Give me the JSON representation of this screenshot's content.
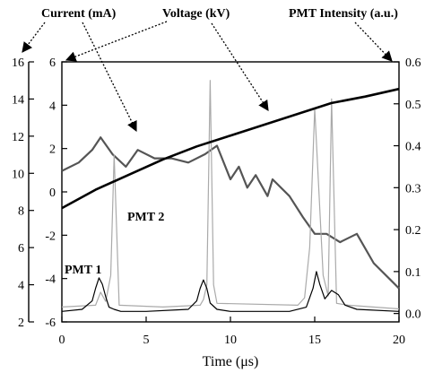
{
  "chart_data": {
    "type": "line",
    "xlabel": "Time (μs)",
    "xlim": [
      0,
      20
    ],
    "xticks": [
      0,
      5,
      10,
      15,
      20
    ],
    "axes": {
      "current": {
        "label": "Current (mA)",
        "ylim": [
          2,
          16
        ],
        "ticks": [
          2,
          4,
          6,
          8,
          10,
          12,
          14,
          16
        ]
      },
      "voltage": {
        "label": "Voltage (kV)",
        "ylim": [
          -6,
          6
        ],
        "ticks": [
          -6,
          -4,
          -2,
          0,
          2,
          4,
          6
        ]
      },
      "pmt": {
        "label": "PMT Intensity (a.u.)",
        "ylim": [
          -0.02,
          0.6
        ],
        "ticks": [
          "0.0",
          "0.1",
          "0.2",
          "0.3",
          "0.4",
          "0.5",
          "0.6"
        ]
      }
    },
    "series": [
      {
        "name": "PMT 2",
        "axis": "pmt",
        "color": "#555555",
        "x": [
          0,
          1,
          1.8,
          2.3,
          3,
          3.8,
          4.5,
          5.5,
          6.5,
          7.5,
          8.5,
          9.2,
          10,
          10.5,
          11,
          11.5,
          12.2,
          12.5,
          13.5,
          14.3,
          15,
          15.7,
          16.5,
          17.5,
          18.5,
          19.5,
          20
        ],
        "values": [
          0.34,
          0.36,
          0.39,
          0.42,
          0.38,
          0.35,
          0.39,
          0.37,
          0.37,
          0.36,
          0.38,
          0.4,
          0.32,
          0.35,
          0.3,
          0.33,
          0.28,
          0.32,
          0.28,
          0.23,
          0.19,
          0.19,
          0.17,
          0.19,
          0.12,
          0.08,
          0.06
        ]
      },
      {
        "name": "Current",
        "axis": "current",
        "color": "#aaaaaa",
        "x": [
          0,
          2,
          2.3,
          2.6,
          2.9,
          3.1,
          3.4,
          6,
          8.2,
          8.4,
          8.6,
          8.8,
          9.0,
          9.2,
          14,
          14.4,
          14.7,
          15.0,
          15.5,
          15.8,
          16.0,
          16.3,
          17,
          20
        ],
        "values": [
          2.8,
          2.9,
          3.6,
          3.1,
          4.5,
          11.0,
          2.9,
          2.8,
          2.9,
          3.2,
          4.0,
          15.0,
          4.0,
          3.0,
          2.9,
          3.3,
          6.0,
          13.5,
          4.5,
          3.4,
          14.0,
          3.0,
          2.9,
          2.7
        ]
      },
      {
        "name": "PMT 1",
        "axis": "pmt",
        "color": "#000000",
        "x": [
          0,
          1.2,
          1.8,
          2.0,
          2.2,
          2.4,
          2.6,
          2.8,
          3.1,
          3.5,
          5,
          7.5,
          8.0,
          8.2,
          8.4,
          8.6,
          8.8,
          9.2,
          10,
          13.5,
          14.5,
          14.9,
          15.1,
          15.3,
          15.6,
          16.0,
          16.4,
          16.8,
          17.5,
          20
        ],
        "values": [
          0.005,
          0.01,
          0.03,
          0.06,
          0.085,
          0.07,
          0.04,
          0.015,
          0.01,
          0.005,
          0.005,
          0.01,
          0.03,
          0.06,
          0.08,
          0.06,
          0.025,
          0.01,
          0.005,
          0.005,
          0.015,
          0.06,
          0.1,
          0.07,
          0.035,
          0.055,
          0.045,
          0.02,
          0.01,
          0.005
        ]
      },
      {
        "name": "Voltage",
        "axis": "voltage",
        "color": "#000000",
        "x": [
          0,
          2,
          4,
          6,
          8,
          10,
          12,
          14,
          16,
          18,
          20
        ],
        "values": [
          -0.75,
          0.1,
          0.8,
          1.5,
          2.1,
          2.6,
          3.1,
          3.6,
          4.1,
          4.4,
          4.75
        ]
      }
    ],
    "annotations": {
      "current": "Current (mA)",
      "voltage": "Voltage (kV)",
      "pmt_intensity": "PMT Intensity (a.u.)",
      "pmt1": "PMT 1",
      "pmt2": "PMT 2"
    },
    "grid": false,
    "legend": "none"
  }
}
